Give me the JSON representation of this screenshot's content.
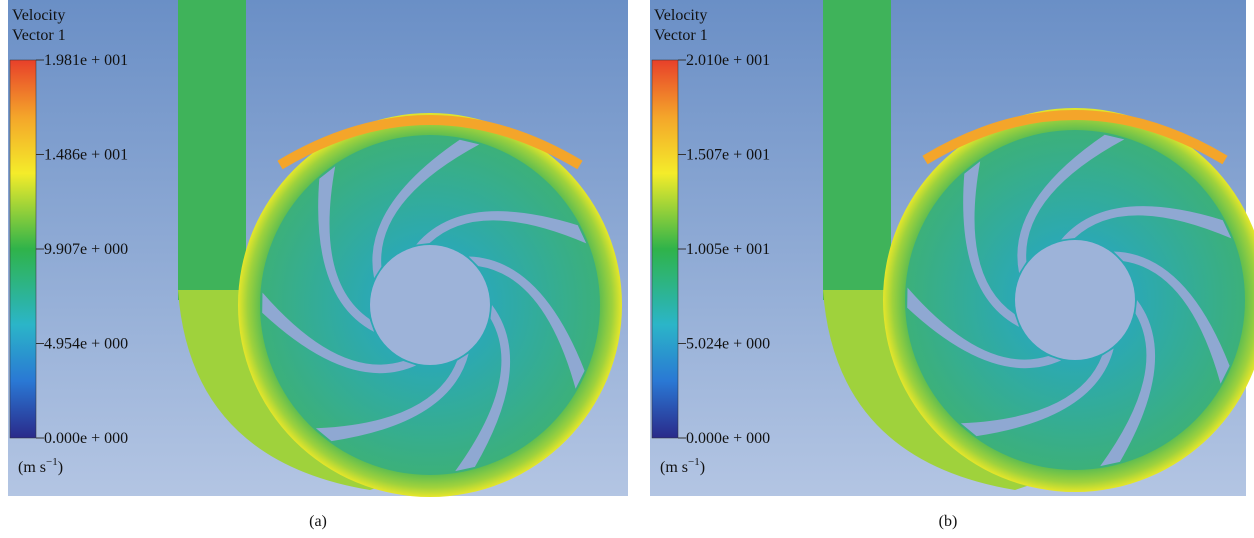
{
  "panels": [
    {
      "legend_title": [
        "Velocity",
        "Vector 1"
      ],
      "ticks": [
        "1.981e + 001",
        "1.486e + 001",
        "9.907e + 000",
        "4.954e + 000",
        "0.000e + 000"
      ],
      "unit": {
        "base": "(m s",
        "exponent": "−1",
        "close": ")"
      },
      "caption": "(a)"
    },
    {
      "legend_title": [
        "Velocity",
        "Vector 1"
      ],
      "ticks": [
        "2.010e + 001",
        "1.507e + 001",
        "1.005e + 001",
        "5.024e + 000",
        "0.000e + 000"
      ],
      "unit": {
        "base": "(m s",
        "exponent": "−1",
        "close": ")"
      },
      "caption": "(b)"
    }
  ]
}
